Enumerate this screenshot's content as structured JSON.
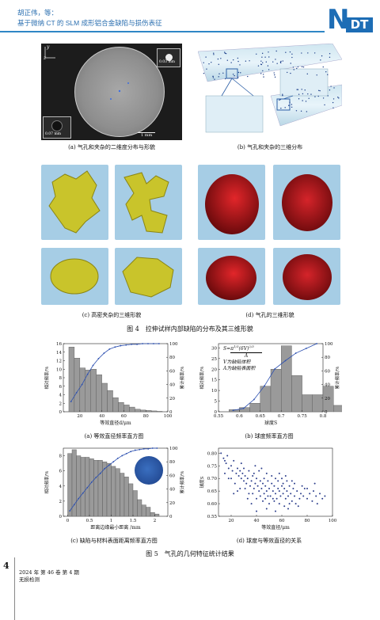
{
  "header": {
    "authors": "胡正伟，等：",
    "title": "基于微纳 CT 的 SLM 成形铝合金缺陷与损伤表征",
    "logo_n": "N",
    "logo_dt": "DT"
  },
  "fig4": {
    "a": {
      "caption": "(a) 气孔和夹杂的二维度分布与形貌",
      "axis_y": "y",
      "axis_z": "z",
      "scale_small": "0.07 mm",
      "scale_top": "0.03 mm",
      "scale_main": "1 mm"
    },
    "b": {
      "caption": "(b) 气孔和夹杂的三维分布"
    },
    "c": {
      "caption": "(c) 高密夹杂的三维形貌"
    },
    "d": {
      "caption": "(d) 气孔的三维形貌"
    },
    "caption": "图 4　拉伸试样内部缺陷的分布及其三维形貌",
    "colors": {
      "inclusion": "#c8c52a",
      "pore": "#b5181c",
      "tile_bg": "#9ec9e3"
    }
  },
  "fig5": {
    "caption": "图 5　气孔的几何特征统计结果",
    "a": {
      "caption": "(a) 等效直径频率直方图",
      "xlabel": "等效直径d/μm",
      "ylabel_left": "相对频率/%",
      "ylabel_right": "累计频率/%"
    },
    "b": {
      "caption": "(b) 球度频率直方图",
      "xlabel": "球度S",
      "ylabel_left": "相对频率/%",
      "ylabel_right": "累计频率/%",
      "formula_top": "π",
      "formula_sup": "1/3",
      "formula_mid": "(6V)",
      "formula_sup2": "2/3",
      "formula_lhs": "S=",
      "formula_den": "A",
      "note1": "V为缺陷体积",
      "note2": "A为缺陷表面积"
    },
    "c": {
      "caption": "(c) 缺陷与材料表面距离频率直方图",
      "xlabel": "距离边缘最小距离 /mm",
      "ylabel_left": "相对频率/%",
      "ylabel_right": "累计频率/%"
    },
    "d": {
      "caption": "(d) 球度与等效直径的关系",
      "xlabel": "等效直径/μm",
      "ylabel": "球度S"
    }
  },
  "footer": {
    "page_number": "4",
    "journal_issue": "2024 年 第 46 卷 第 4 期",
    "journal_name": "无损检测"
  },
  "chart_data": [
    {
      "type": "bar",
      "title": "(a) 等效直径频率直方图",
      "xlabel": "等效直径d/μm",
      "ylabel": "相对频率/%",
      "y2label": "累计频率/%",
      "bin_start": 10,
      "bin_width": 5,
      "values": [
        15.2,
        12.6,
        10.3,
        9.8,
        10.0,
        8.7,
        6.7,
        5.0,
        3.3,
        2.2,
        1.6,
        1.1,
        0.6,
        0.4,
        0.3,
        0.2,
        0.1
      ],
      "cumulative": {
        "x": [
          12,
          17,
          22,
          27,
          32,
          37,
          42,
          47,
          52,
          57,
          62,
          67,
          72,
          77,
          82,
          87,
          92
        ],
        "y": [
          15,
          28,
          40,
          55,
          68,
          78,
          86,
          92,
          95,
          97,
          98,
          99,
          99,
          100,
          100,
          100,
          100
        ]
      },
      "xlim": [
        5,
        100
      ],
      "ylim": [
        0,
        16
      ],
      "y2lim": [
        0,
        100
      ],
      "xticks": [
        20,
        40,
        60,
        80,
        100
      ],
      "yticks": [
        0,
        2,
        4,
        6,
        8,
        10,
        12,
        14,
        16
      ],
      "y2ticks": [
        0,
        20,
        40,
        60,
        80,
        100
      ]
    },
    {
      "type": "bar",
      "title": "(b) 球度频率直方图",
      "xlabel": "球度S",
      "ylabel": "相对频率/%",
      "y2label": "累计频率/%",
      "bin_start": 0.575,
      "bin_width": 0.025,
      "values": [
        1,
        2,
        4,
        12,
        20,
        31,
        17,
        8,
        8,
        12,
        3
      ],
      "cumulative": {
        "x": [
          0.585,
          0.61,
          0.635,
          0.66,
          0.685,
          0.71,
          0.735,
          0.76,
          0.785
        ],
        "y": [
          2,
          5,
          18,
          38,
          63,
          75,
          86,
          93,
          100
        ]
      },
      "xlim": [
        0.55,
        0.8
      ],
      "ylim": [
        0,
        32
      ],
      "y2lim": [
        0,
        100
      ],
      "xticks": [
        0.55,
        0.6,
        0.65,
        0.7,
        0.75,
        0.8
      ],
      "yticks": [
        0,
        5,
        10,
        15,
        20,
        25,
        30
      ],
      "y2ticks": [
        0,
        20,
        40,
        60,
        80,
        100
      ]
    },
    {
      "type": "bar",
      "title": "(c) 缺陷与材料表面距离频率直方图",
      "xlabel": "距离边缘最小距离 /mm",
      "ylabel": "相对频率/%",
      "y2label": "累计频率/%",
      "bin_start": 0.0,
      "bin_width": 0.1,
      "values": [
        8.3,
        8.8,
        8.0,
        7.8,
        7.8,
        7.6,
        7.4,
        7.4,
        7.2,
        7.0,
        6.6,
        6.3,
        5.7,
        5.2,
        4.3,
        3.4,
        2.2,
        1.5,
        1.2,
        0.5,
        0.3
      ],
      "cumulative": {
        "x": [
          0.05,
          0.15,
          0.25,
          0.35,
          0.45,
          0.55,
          0.65,
          0.75,
          0.85,
          0.95,
          1.05,
          1.15,
          1.25,
          1.35,
          1.45,
          1.55,
          1.65,
          1.75,
          1.85,
          1.95,
          2.05
        ],
        "y": [
          8,
          17,
          26,
          34,
          42,
          50,
          57,
          63,
          70,
          75,
          80,
          85,
          89,
          92,
          95,
          97,
          98,
          99,
          99,
          100,
          100
        ]
      },
      "xlim": [
        -0.1,
        2.3
      ],
      "ylim": [
        0,
        9
      ],
      "y2lim": [
        0,
        100
      ],
      "xticks": [
        0.0,
        0.5,
        1.0,
        1.5,
        2.0
      ],
      "yticks": [
        0,
        2,
        4,
        6,
        8
      ],
      "y2ticks": [
        0,
        20,
        40,
        60,
        80,
        100
      ]
    },
    {
      "type": "scatter",
      "title": "(d) 球度与等效直径的关系",
      "xlabel": "等效直径/μm",
      "ylabel": "球度S",
      "xlim": [
        10,
        100
      ],
      "ylim": [
        0.55,
        0.82
      ],
      "xticks": [
        20,
        40,
        60,
        80,
        100
      ],
      "yticks": [
        0.55,
        0.6,
        0.65,
        0.7,
        0.75,
        0.8
      ],
      "points": [
        [
          12,
          0.8
        ],
        [
          14,
          0.78
        ],
        [
          15,
          0.77
        ],
        [
          16,
          0.76
        ],
        [
          17,
          0.79
        ],
        [
          18,
          0.74
        ],
        [
          20,
          0.75
        ],
        [
          21,
          0.73
        ],
        [
          22,
          0.77
        ],
        [
          24,
          0.72
        ],
        [
          25,
          0.74
        ],
        [
          26,
          0.71
        ],
        [
          27,
          0.73
        ],
        [
          28,
          0.7
        ],
        [
          29,
          0.72
        ],
        [
          30,
          0.69
        ],
        [
          31,
          0.71
        ],
        [
          32,
          0.68
        ],
        [
          33,
          0.7
        ],
        [
          34,
          0.73
        ],
        [
          35,
          0.67
        ],
        [
          36,
          0.69
        ],
        [
          37,
          0.71
        ],
        [
          38,
          0.66
        ],
        [
          39,
          0.68
        ],
        [
          40,
          0.7
        ],
        [
          41,
          0.67
        ],
        [
          42,
          0.65
        ],
        [
          43,
          0.69
        ],
        [
          44,
          0.66
        ],
        [
          45,
          0.68
        ],
        [
          46,
          0.64
        ],
        [
          47,
          0.67
        ],
        [
          48,
          0.65
        ],
        [
          49,
          0.69
        ],
        [
          50,
          0.66
        ],
        [
          51,
          0.63
        ],
        [
          52,
          0.68
        ],
        [
          53,
          0.65
        ],
        [
          54,
          0.67
        ],
        [
          55,
          0.64
        ],
        [
          56,
          0.62
        ],
        [
          57,
          0.66
        ],
        [
          58,
          0.65
        ],
        [
          59,
          0.63
        ],
        [
          60,
          0.67
        ],
        [
          61,
          0.64
        ],
        [
          62,
          0.66
        ],
        [
          63,
          0.62
        ],
        [
          64,
          0.65
        ],
        [
          65,
          0.63
        ],
        [
          66,
          0.67
        ],
        [
          67,
          0.64
        ],
        [
          68,
          0.61
        ],
        [
          69,
          0.66
        ],
        [
          70,
          0.63
        ],
        [
          72,
          0.65
        ],
        [
          74,
          0.62
        ],
        [
          75,
          0.64
        ],
        [
          77,
          0.63
        ],
        [
          78,
          0.66
        ],
        [
          80,
          0.62
        ],
        [
          82,
          0.64
        ],
        [
          84,
          0.61
        ],
        [
          85,
          0.65
        ],
        [
          87,
          0.63
        ],
        [
          88,
          0.6
        ],
        [
          90,
          0.64
        ],
        [
          92,
          0.62
        ],
        [
          94,
          0.63
        ],
        [
          20,
          0.7
        ],
        [
          23,
          0.68
        ],
        [
          27,
          0.66
        ],
        [
          30,
          0.74
        ],
        [
          34,
          0.64
        ],
        [
          38,
          0.72
        ],
        [
          42,
          0.73
        ],
        [
          45,
          0.61
        ],
        [
          48,
          0.72
        ],
        [
          50,
          0.6
        ],
        [
          52,
          0.71
        ],
        [
          55,
          0.7
        ],
        [
          58,
          0.6
        ],
        [
          60,
          0.7
        ],
        [
          62,
          0.59
        ],
        [
          64,
          0.69
        ],
        [
          66,
          0.6
        ],
        [
          70,
          0.68
        ],
        [
          73,
          0.59
        ],
        [
          76,
          0.67
        ],
        [
          36,
          0.6
        ],
        [
          40,
          0.62
        ],
        [
          44,
          0.74
        ],
        [
          47,
          0.62
        ],
        [
          53,
          0.62
        ],
        [
          57,
          0.69
        ],
        [
          61,
          0.68
        ],
        [
          65,
          0.58
        ],
        [
          68,
          0.69
        ],
        [
          71,
          0.6
        ],
        [
          25,
          0.65
        ],
        [
          28,
          0.76
        ],
        [
          31,
          0.66
        ],
        [
          33,
          0.62
        ],
        [
          37,
          0.64
        ],
        [
          39,
          0.75
        ],
        [
          43,
          0.63
        ],
        [
          46,
          0.7
        ],
        [
          49,
          0.63
        ],
        [
          54,
          0.61
        ],
        [
          40,
          0.57
        ],
        [
          48,
          0.58
        ],
        [
          55,
          0.57
        ],
        [
          15,
          0.72
        ],
        [
          18,
          0.7
        ],
        [
          22,
          0.64
        ],
        [
          58,
          0.72
        ],
        [
          63,
          0.71
        ],
        [
          80,
          0.66
        ],
        [
          86,
          0.68
        ]
      ]
    }
  ]
}
